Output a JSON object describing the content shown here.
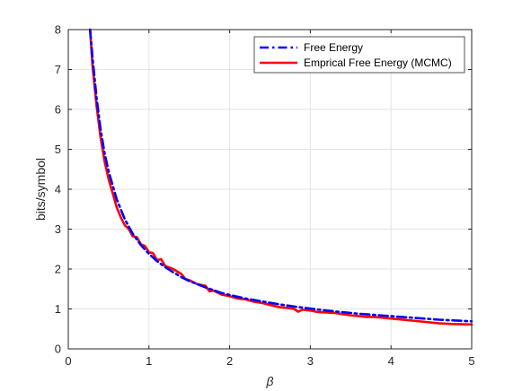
{
  "chart_data": {
    "type": "line",
    "xlabel": "β",
    "ylabel": "bits/symbol",
    "xlim": [
      0,
      5
    ],
    "ylim": [
      0,
      8
    ],
    "xticks": [
      0,
      1,
      2,
      3,
      4,
      5
    ],
    "yticks": [
      0,
      1,
      2,
      3,
      4,
      5,
      6,
      7,
      8
    ],
    "grid": true,
    "legend_position": "top-right",
    "series": [
      {
        "name": "Free Energy",
        "color": "#0000ff",
        "style": "dash-dot",
        "x": [
          0.27,
          0.3,
          0.35,
          0.4,
          0.45,
          0.5,
          0.6,
          0.7,
          0.8,
          0.9,
          1.0,
          1.1,
          1.2,
          1.3,
          1.4,
          1.5,
          1.6,
          1.7,
          1.8,
          1.9,
          2.0,
          2.2,
          2.4,
          2.6,
          2.8,
          3.0,
          3.2,
          3.4,
          3.6,
          3.8,
          4.0,
          4.2,
          4.4,
          4.6,
          4.8,
          5.0
        ],
        "values": [
          8.0,
          7.3,
          6.3,
          5.5,
          4.9,
          4.45,
          3.75,
          3.25,
          2.88,
          2.6,
          2.38,
          2.2,
          2.05,
          1.92,
          1.8,
          1.7,
          1.62,
          1.54,
          1.47,
          1.4,
          1.35,
          1.26,
          1.19,
          1.12,
          1.06,
          1.01,
          0.96,
          0.92,
          0.88,
          0.85,
          0.82,
          0.79,
          0.76,
          0.73,
          0.71,
          0.69
        ]
      },
      {
        "name": "Emprical Free Energy (MCMC)",
        "color": "#ff0000",
        "style": "solid",
        "x": [
          0.27,
          0.3,
          0.35,
          0.4,
          0.45,
          0.5,
          0.55,
          0.6,
          0.65,
          0.7,
          0.75,
          0.8,
          0.85,
          0.9,
          0.95,
          1.0,
          1.05,
          1.1,
          1.15,
          1.2,
          1.3,
          1.4,
          1.45,
          1.5,
          1.6,
          1.7,
          1.75,
          1.8,
          1.9,
          2.0,
          2.1,
          2.2,
          2.3,
          2.4,
          2.5,
          2.6,
          2.7,
          2.8,
          2.85,
          2.9,
          3.0,
          3.1,
          3.2,
          3.3,
          3.4,
          3.5,
          3.6,
          3.7,
          3.8,
          3.9,
          4.0,
          4.2,
          4.4,
          4.6,
          4.8,
          5.0
        ],
        "values": [
          8.0,
          7.1,
          6.1,
          5.3,
          4.7,
          4.25,
          3.9,
          3.55,
          3.3,
          3.1,
          3.0,
          2.82,
          2.8,
          2.62,
          2.58,
          2.42,
          2.4,
          2.22,
          2.25,
          2.08,
          2.0,
          1.88,
          1.75,
          1.72,
          1.62,
          1.58,
          1.44,
          1.46,
          1.36,
          1.32,
          1.26,
          1.24,
          1.18,
          1.15,
          1.1,
          1.05,
          1.03,
          1.0,
          0.93,
          0.98,
          0.96,
          0.92,
          0.91,
          0.9,
          0.87,
          0.84,
          0.82,
          0.8,
          0.8,
          0.78,
          0.76,
          0.72,
          0.68,
          0.64,
          0.62,
          0.61
        ]
      }
    ]
  }
}
